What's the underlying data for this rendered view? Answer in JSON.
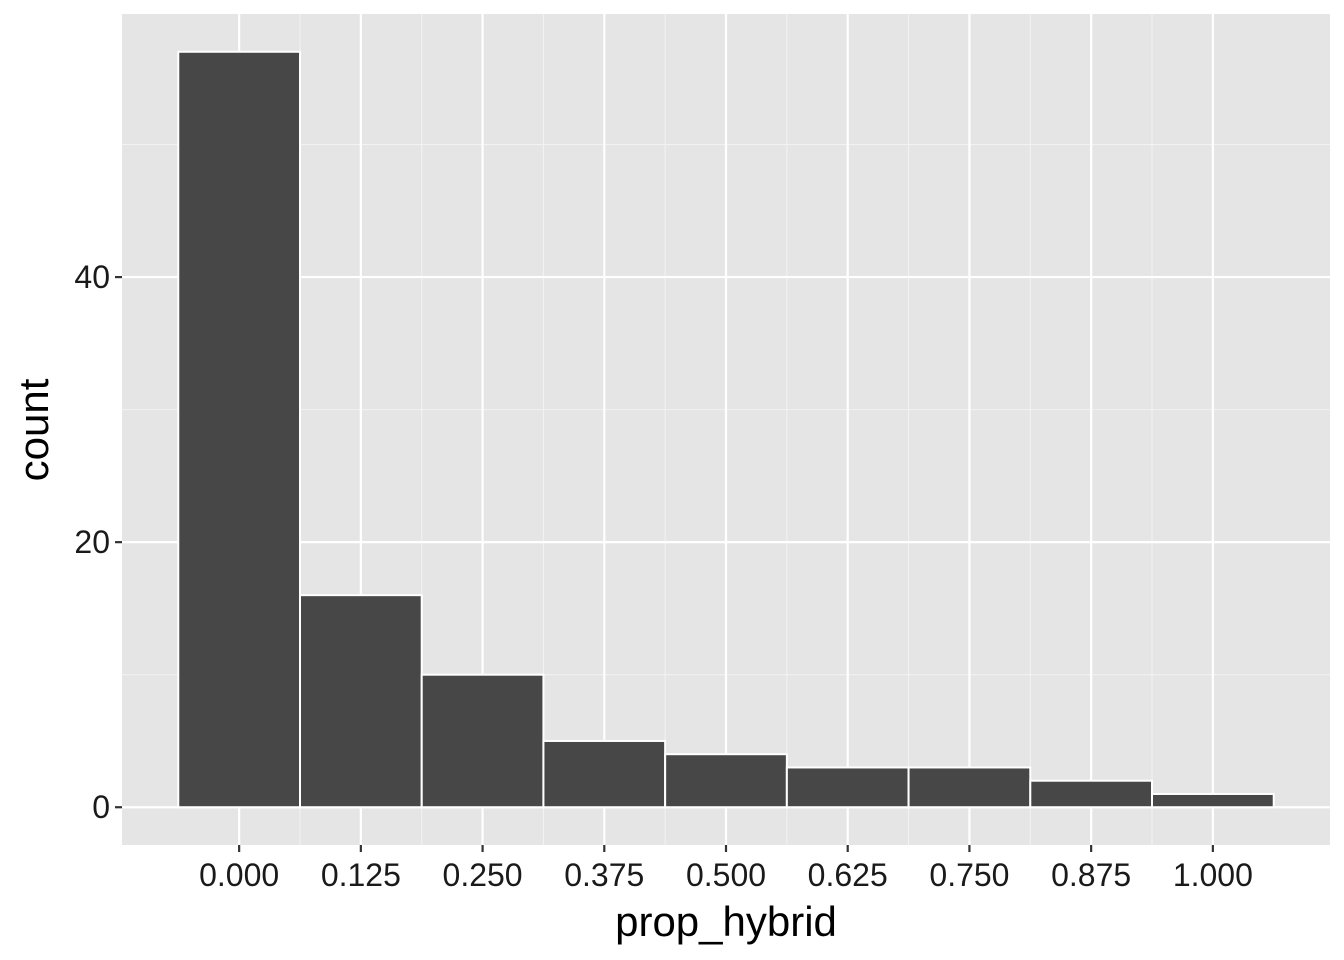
{
  "chart_data": {
    "type": "bar",
    "subtype": "histogram",
    "xlabel": "prop_hybrid",
    "ylabel": "count",
    "bin_width": 0.125,
    "bins": [
      {
        "center": 0.0,
        "count": 57
      },
      {
        "center": 0.125,
        "count": 16
      },
      {
        "center": 0.25,
        "count": 10
      },
      {
        "center": 0.375,
        "count": 5
      },
      {
        "center": 0.5,
        "count": 4
      },
      {
        "center": 0.625,
        "count": 3
      },
      {
        "center": 0.75,
        "count": 3
      },
      {
        "center": 0.875,
        "count": 2
      },
      {
        "center": 1.0,
        "count": 1
      }
    ],
    "x_ticks": [
      {
        "value": 0.0,
        "label": "0.000"
      },
      {
        "value": 0.125,
        "label": "0.125"
      },
      {
        "value": 0.25,
        "label": "0.250"
      },
      {
        "value": 0.375,
        "label": "0.375"
      },
      {
        "value": 0.5,
        "label": "0.500"
      },
      {
        "value": 0.625,
        "label": "0.625"
      },
      {
        "value": 0.75,
        "label": "0.750"
      },
      {
        "value": 0.875,
        "label": "0.875"
      },
      {
        "value": 1.0,
        "label": "1.000"
      }
    ],
    "y_ticks": [
      {
        "value": 0,
        "label": "0"
      },
      {
        "value": 20,
        "label": "20"
      },
      {
        "value": 40,
        "label": "40"
      }
    ],
    "xlim": [
      -0.1203,
      1.1203
    ],
    "ylim": [
      -2.85,
      59.85
    ],
    "grid": true,
    "colors": {
      "panel_background": "#e5e5e5",
      "grid_major": "#ffffff",
      "grid_minor": "#f2f2f2",
      "bar_fill": "#474747",
      "bar_outline": "#ffffff",
      "tick_mark": "#333333"
    }
  }
}
